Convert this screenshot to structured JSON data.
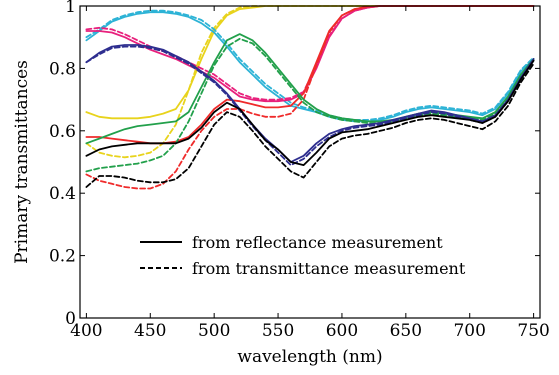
{
  "chart_data": {
    "type": "line",
    "xlabel": "wavelength (nm)",
    "ylabel": "Primary transmittances",
    "xlim": [
      395,
      755
    ],
    "ylim": [
      0,
      1
    ],
    "xticks": [
      400,
      450,
      500,
      550,
      600,
      650,
      700,
      750
    ],
    "yticks": [
      {
        "value": 0,
        "label": "0"
      },
      {
        "value": 0.2,
        "label": "0.2"
      },
      {
        "value": 0.4,
        "label": "0.4"
      },
      {
        "value": 0.6,
        "label": "0.6"
      },
      {
        "value": 0.8,
        "label": "0.8"
      },
      {
        "value": 1,
        "label": "1"
      }
    ],
    "legend": {
      "position": "lower-right",
      "entries": [
        {
          "style": "solid",
          "label": "from reflectance measurement"
        },
        {
          "style": "dashed",
          "label": "from transmittance measurement"
        }
      ]
    },
    "x": [
      400,
      410,
      420,
      430,
      440,
      450,
      460,
      470,
      480,
      490,
      500,
      510,
      520,
      530,
      540,
      550,
      560,
      570,
      580,
      590,
      600,
      610,
      620,
      630,
      640,
      650,
      660,
      670,
      680,
      690,
      700,
      710,
      720,
      730,
      740,
      750
    ],
    "series": [
      {
        "color": "#e8d31c",
        "style": "solid",
        "values": [
          0.66,
          0.645,
          0.64,
          0.64,
          0.64,
          0.645,
          0.655,
          0.67,
          0.73,
          0.83,
          0.92,
          0.97,
          0.99,
          0.995,
          1,
          1,
          1,
          1,
          1,
          1,
          1,
          1,
          1,
          1,
          1,
          1,
          1,
          1,
          1,
          1,
          1,
          1,
          1,
          1,
          1,
          1
        ]
      },
      {
        "color": "#e8d31c",
        "style": "dashed",
        "values": [
          0.56,
          0.53,
          0.52,
          0.515,
          0.52,
          0.53,
          0.56,
          0.62,
          0.73,
          0.85,
          0.93,
          0.975,
          0.995,
          1,
          1,
          1,
          1,
          1,
          1,
          1,
          1,
          1,
          1,
          1,
          1,
          1,
          1,
          1,
          1,
          1,
          1,
          1,
          1,
          1,
          1,
          1
        ]
      },
      {
        "color": "#2db3d6",
        "style": "solid",
        "values": [
          0.89,
          0.92,
          0.95,
          0.965,
          0.975,
          0.98,
          0.98,
          0.975,
          0.965,
          0.945,
          0.915,
          0.87,
          0.82,
          0.78,
          0.74,
          0.71,
          0.68,
          0.67,
          0.66,
          0.645,
          0.635,
          0.63,
          0.63,
          0.635,
          0.645,
          0.66,
          0.67,
          0.675,
          0.67,
          0.665,
          0.66,
          0.65,
          0.67,
          0.72,
          0.79,
          0.83
        ]
      },
      {
        "color": "#2db3d6",
        "style": "dashed",
        "values": [
          0.9,
          0.925,
          0.955,
          0.97,
          0.98,
          0.985,
          0.985,
          0.98,
          0.97,
          0.955,
          0.925,
          0.88,
          0.83,
          0.79,
          0.75,
          0.72,
          0.69,
          0.675,
          0.665,
          0.65,
          0.64,
          0.635,
          0.635,
          0.64,
          0.65,
          0.665,
          0.675,
          0.68,
          0.675,
          0.67,
          0.665,
          0.655,
          0.675,
          0.725,
          0.795,
          0.835
        ]
      },
      {
        "color": "#e8207c",
        "style": "solid",
        "values": [
          0.92,
          0.92,
          0.915,
          0.9,
          0.88,
          0.86,
          0.845,
          0.83,
          0.81,
          0.79,
          0.77,
          0.74,
          0.71,
          0.7,
          0.695,
          0.695,
          0.7,
          0.72,
          0.8,
          0.9,
          0.96,
          0.985,
          0.995,
          1,
          1,
          1,
          1,
          1,
          1,
          1,
          1,
          1,
          1,
          1,
          1,
          1
        ]
      },
      {
        "color": "#e8207c",
        "style": "dashed",
        "values": [
          0.925,
          0.93,
          0.925,
          0.91,
          0.89,
          0.87,
          0.855,
          0.84,
          0.82,
          0.8,
          0.78,
          0.75,
          0.72,
          0.705,
          0.7,
          0.7,
          0.705,
          0.725,
          0.81,
          0.905,
          0.96,
          0.985,
          0.995,
          1,
          1,
          1,
          1,
          1,
          1,
          1,
          1,
          1,
          1,
          1,
          1,
          1
        ]
      },
      {
        "color": "#ef2b2b",
        "style": "solid",
        "values": [
          0.58,
          0.58,
          0.575,
          0.57,
          0.565,
          0.56,
          0.56,
          0.565,
          0.58,
          0.62,
          0.67,
          0.7,
          0.695,
          0.685,
          0.675,
          0.675,
          0.68,
          0.72,
          0.82,
          0.92,
          0.97,
          0.99,
          0.998,
          1,
          1,
          1,
          1,
          1,
          1,
          1,
          1,
          1,
          1,
          1,
          1,
          1
        ]
      },
      {
        "color": "#ef2b2b",
        "style": "dashed",
        "values": [
          0.46,
          0.44,
          0.43,
          0.42,
          0.415,
          0.415,
          0.43,
          0.47,
          0.54,
          0.6,
          0.645,
          0.67,
          0.67,
          0.655,
          0.645,
          0.645,
          0.655,
          0.7,
          0.81,
          0.915,
          0.97,
          0.99,
          0.998,
          1,
          1,
          1,
          1,
          1,
          1,
          1,
          1,
          1,
          1,
          1,
          1,
          1
        ]
      },
      {
        "color": "#22a04b",
        "style": "solid",
        "values": [
          0.56,
          0.575,
          0.59,
          0.605,
          0.615,
          0.62,
          0.625,
          0.63,
          0.66,
          0.74,
          0.82,
          0.89,
          0.91,
          0.89,
          0.85,
          0.8,
          0.75,
          0.7,
          0.67,
          0.65,
          0.64,
          0.635,
          0.63,
          0.63,
          0.635,
          0.645,
          0.655,
          0.66,
          0.655,
          0.65,
          0.645,
          0.64,
          0.66,
          0.71,
          0.78,
          0.83
        ]
      },
      {
        "color": "#22a04b",
        "style": "dashed",
        "values": [
          0.47,
          0.48,
          0.485,
          0.49,
          0.495,
          0.505,
          0.52,
          0.56,
          0.63,
          0.72,
          0.81,
          0.87,
          0.895,
          0.88,
          0.84,
          0.79,
          0.74,
          0.69,
          0.66,
          0.645,
          0.635,
          0.63,
          0.625,
          0.625,
          0.63,
          0.64,
          0.65,
          0.655,
          0.65,
          0.645,
          0.64,
          0.635,
          0.655,
          0.705,
          0.775,
          0.825
        ]
      },
      {
        "color": "#2e2e8f",
        "style": "solid",
        "values": [
          0.82,
          0.85,
          0.87,
          0.875,
          0.875,
          0.87,
          0.86,
          0.84,
          0.82,
          0.79,
          0.76,
          0.72,
          0.67,
          0.62,
          0.575,
          0.54,
          0.5,
          0.52,
          0.56,
          0.59,
          0.605,
          0.615,
          0.62,
          0.625,
          0.635,
          0.645,
          0.655,
          0.665,
          0.66,
          0.65,
          0.64,
          0.63,
          0.65,
          0.7,
          0.77,
          0.83
        ]
      },
      {
        "color": "#2e2e8f",
        "style": "dashed",
        "values": [
          0.82,
          0.845,
          0.865,
          0.87,
          0.87,
          0.865,
          0.855,
          0.835,
          0.815,
          0.785,
          0.755,
          0.715,
          0.665,
          0.615,
          0.57,
          0.53,
          0.49,
          0.51,
          0.55,
          0.58,
          0.6,
          0.61,
          0.615,
          0.62,
          0.63,
          0.64,
          0.65,
          0.66,
          0.655,
          0.645,
          0.635,
          0.625,
          0.645,
          0.695,
          0.765,
          0.825
        ]
      },
      {
        "color": "#000000",
        "style": "solid",
        "values": [
          0.52,
          0.54,
          0.55,
          0.555,
          0.56,
          0.56,
          0.56,
          0.56,
          0.575,
          0.61,
          0.66,
          0.69,
          0.67,
          0.62,
          0.57,
          0.54,
          0.5,
          0.49,
          0.53,
          0.575,
          0.595,
          0.6,
          0.605,
          0.615,
          0.625,
          0.635,
          0.645,
          0.65,
          0.645,
          0.64,
          0.635,
          0.625,
          0.645,
          0.695,
          0.765,
          0.825
        ]
      },
      {
        "color": "#000000",
        "style": "dashed",
        "values": [
          0.42,
          0.455,
          0.455,
          0.45,
          0.44,
          0.435,
          0.435,
          0.445,
          0.48,
          0.55,
          0.62,
          0.66,
          0.645,
          0.6,
          0.55,
          0.51,
          0.47,
          0.45,
          0.5,
          0.55,
          0.575,
          0.585,
          0.59,
          0.6,
          0.61,
          0.625,
          0.635,
          0.64,
          0.635,
          0.625,
          0.615,
          0.605,
          0.63,
          0.68,
          0.755,
          0.815
        ]
      }
    ]
  }
}
